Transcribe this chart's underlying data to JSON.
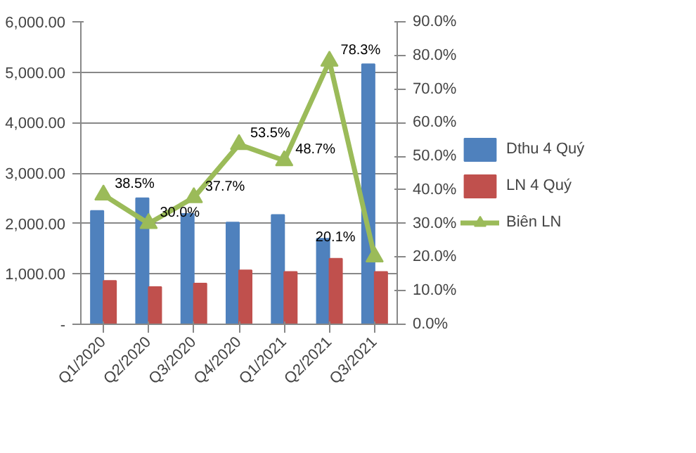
{
  "chart_data": {
    "type": "bar",
    "categories": [
      "Q1/2020",
      "Q2/2020",
      "Q3/2020",
      "Q4/2020",
      "Q1/2021",
      "Q2/2021",
      "Q3/2021"
    ],
    "series": [
      {
        "name": "Dthu 4 Quý",
        "color": "#4f81bd",
        "values": [
          2250,
          2500,
          2190,
          2020,
          2170,
          1700,
          5160
        ]
      },
      {
        "name": "LN 4 Quý",
        "color": "#c0504d",
        "values": [
          860,
          740,
          810,
          1070,
          1040,
          1300,
          1040
        ]
      },
      {
        "name": "Biên LN",
        "type": "line",
        "axis": "y2",
        "color": "#9bbb59",
        "marker": "triangle",
        "values": [
          38.5,
          30.0,
          37.7,
          53.5,
          48.7,
          78.3,
          20.1
        ],
        "value_labels": [
          "38.5%",
          "30.0%",
          "37.7%",
          "53.5%",
          "48.7%",
          "78.3%",
          "20.1%"
        ]
      }
    ],
    "ylim": [
      0,
      6000
    ],
    "yticks": [
      {
        "value": 0,
        "label": "-"
      },
      {
        "value": 1000,
        "label": "1,000.00"
      },
      {
        "value": 2000,
        "label": "2,000.00"
      },
      {
        "value": 3000,
        "label": "3,000.00"
      },
      {
        "value": 4000,
        "label": "4,000.00"
      },
      {
        "value": 5000,
        "label": "5,000.00"
      },
      {
        "value": 6000,
        "label": "6,000.00"
      }
    ],
    "y2lim": [
      0,
      90
    ],
    "y2ticks": [
      {
        "value": 0,
        "label": "0.0%"
      },
      {
        "value": 10,
        "label": "10.0%"
      },
      {
        "value": 20,
        "label": "20.0%"
      },
      {
        "value": 30,
        "label": "30.0%"
      },
      {
        "value": 40,
        "label": "40.0%"
      },
      {
        "value": 50,
        "label": "50.0%"
      },
      {
        "value": 60,
        "label": "60.0%"
      },
      {
        "value": 70,
        "label": "70.0%"
      },
      {
        "value": 80,
        "label": "80.0%"
      },
      {
        "value": 90,
        "label": "90.0%"
      }
    ],
    "grid": "y",
    "legend": "right"
  }
}
